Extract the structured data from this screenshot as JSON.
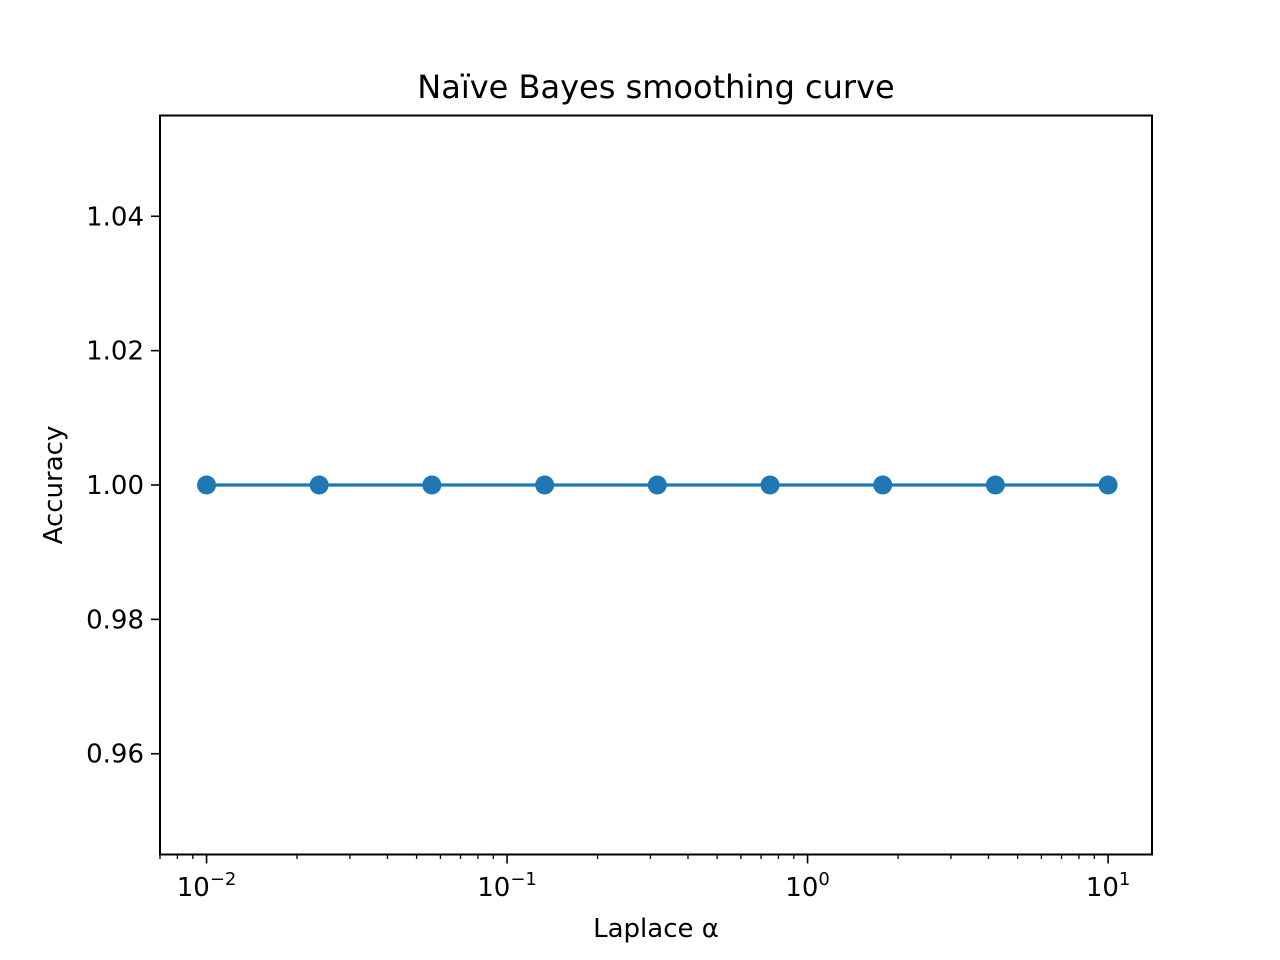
{
  "chart_data": {
    "type": "line",
    "title": "Naïve Bayes smoothing curve",
    "xlabel": "Laplace α",
    "ylabel": "Accuracy",
    "xscale": "log",
    "xlim": [
      0.007,
      14
    ],
    "ylim": [
      0.945,
      1.055
    ],
    "x_ticks": [
      {
        "value": 0.01,
        "base": "10",
        "exp": "−2"
      },
      {
        "value": 0.1,
        "base": "10",
        "exp": "−1"
      },
      {
        "value": 1,
        "base": "10",
        "exp": "0"
      },
      {
        "value": 10,
        "base": "10",
        "exp": "1"
      }
    ],
    "y_ticks": [
      {
        "value": 0.96,
        "label": "0.96"
      },
      {
        "value": 0.98,
        "label": "0.98"
      },
      {
        "value": 1.0,
        "label": "1.00"
      },
      {
        "value": 1.02,
        "label": "1.02"
      },
      {
        "value": 1.04,
        "label": "1.04"
      }
    ],
    "grid": false,
    "series": [
      {
        "color": "#1f77b4",
        "marker": "circle",
        "x": [
          0.01,
          0.0237,
          0.0562,
          0.1334,
          0.3162,
          0.7499,
          1.7783,
          4.217,
          10
        ],
        "y": [
          1.0,
          1.0,
          1.0,
          1.0,
          1.0,
          1.0,
          1.0,
          1.0,
          1.0
        ]
      }
    ]
  }
}
